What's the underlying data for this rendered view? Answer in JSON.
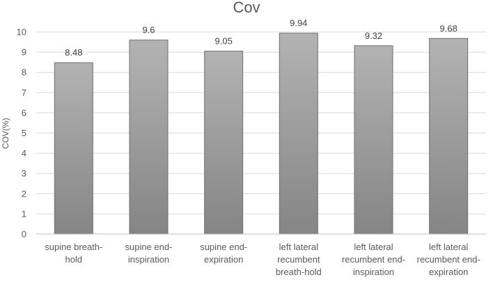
{
  "chart_data": {
    "type": "bar",
    "title": "Cov",
    "xlabel": "",
    "ylabel": "COV(%)",
    "ylim": [
      0,
      10
    ],
    "yticks": [
      0,
      1,
      2,
      3,
      4,
      5,
      6,
      7,
      8,
      9,
      10
    ],
    "grid": true,
    "legend": "none",
    "categories": [
      [
        "supine breath-",
        "hold"
      ],
      [
        "supine end-",
        "inspiration"
      ],
      [
        "supine end-",
        "expiration"
      ],
      [
        "left lateral",
        "recumbent",
        "breath-hold"
      ],
      [
        "left lateral",
        "recumbent end-",
        "inspiration"
      ],
      [
        "left lateral",
        "recumbent end-",
        "expiration"
      ]
    ],
    "values": [
      8.48,
      9.6,
      9.05,
      9.94,
      9.32,
      9.68
    ],
    "data_labels": [
      "8.48",
      "9.6",
      "9.05",
      "9.94",
      "9.32",
      "9.68"
    ],
    "colors": {
      "bar_top": "#b3b3b3",
      "bar_bottom": "#858585",
      "bar_edge": "#6f6f6f"
    }
  }
}
